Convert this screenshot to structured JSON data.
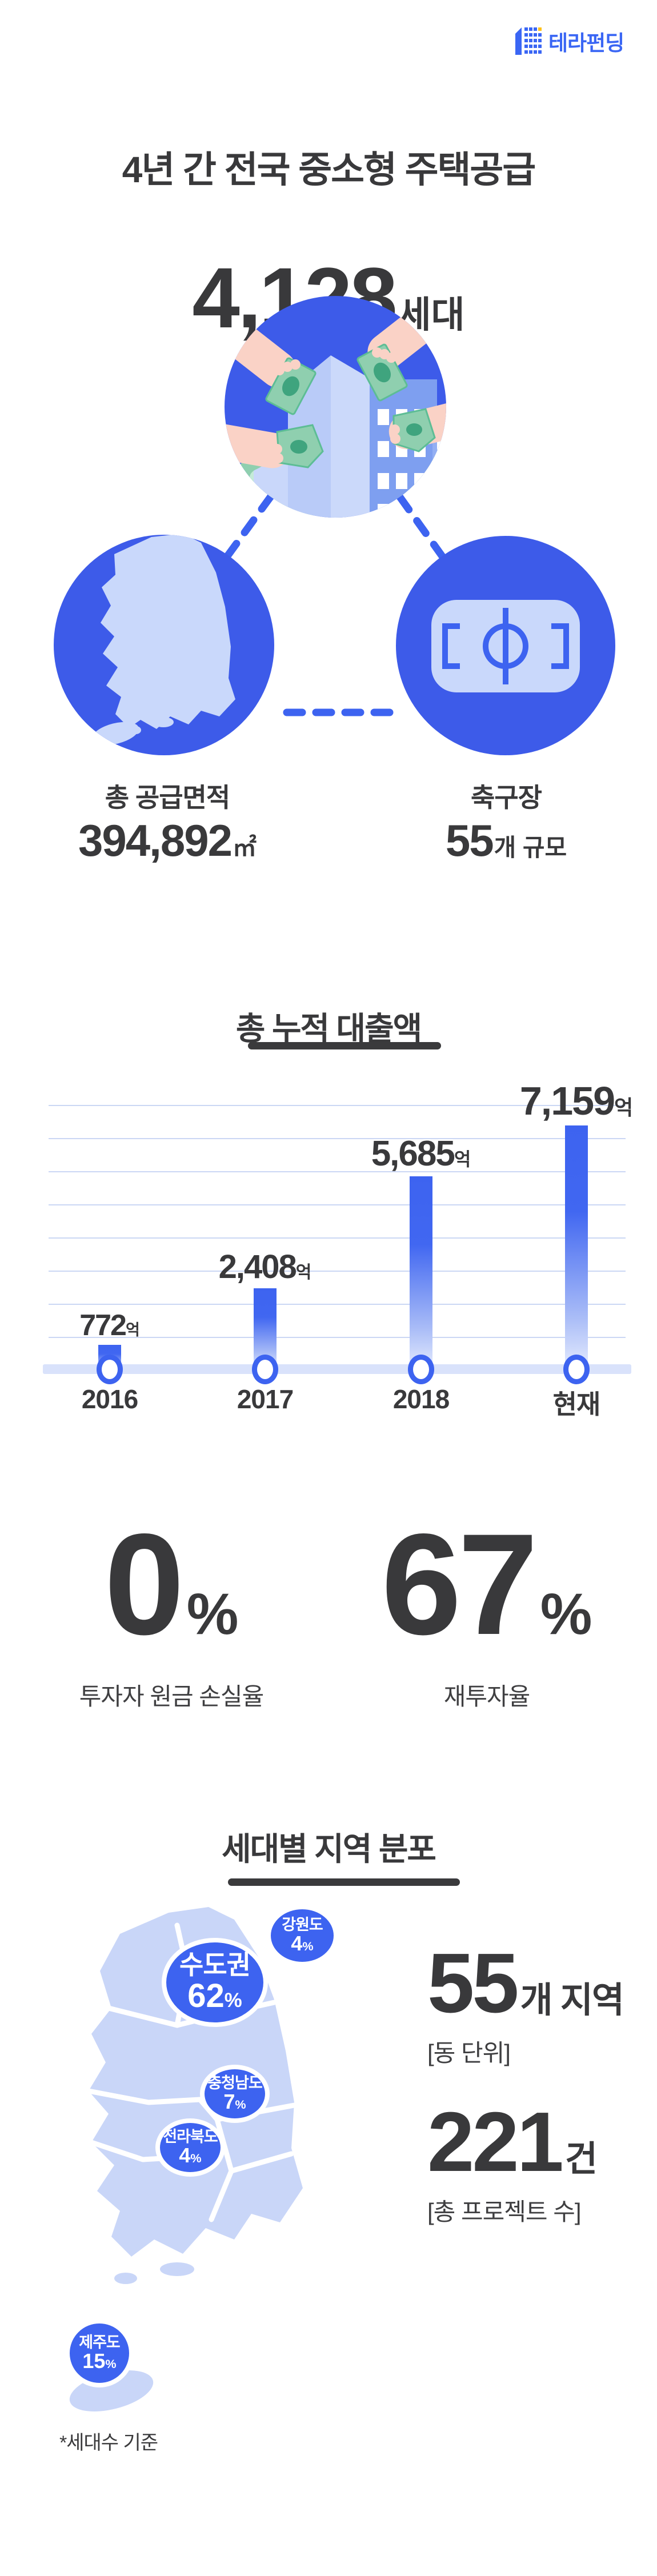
{
  "brand": {
    "name": "테라펀딩"
  },
  "hero": {
    "title": "4년 간 전국 중소형 주택공급",
    "households": {
      "value": "4,128",
      "unit": "세대"
    },
    "area": {
      "label": "총 공급면적",
      "value": "394,892",
      "unit": "㎡"
    },
    "soccer": {
      "label": "축구장",
      "value": "55",
      "unit": "개 규모"
    }
  },
  "loan": {
    "title": "총 누적 대출액"
  },
  "chart_data": {
    "type": "bar",
    "title": "총 누적 대출액",
    "categories": [
      "2016",
      "2017",
      "2018",
      "현재"
    ],
    "values": [
      772,
      2408,
      5685,
      7159
    ],
    "value_labels": [
      "772",
      "2,408",
      "5,685",
      "7,159"
    ],
    "unit": "억",
    "ylim": [
      0,
      7500
    ],
    "grid": true,
    "legend": false,
    "bar_color": "#3D63F0"
  },
  "stats": [
    {
      "value": "0",
      "unit": "%",
      "label": "투자자 원금 손실율"
    },
    {
      "value": "67",
      "unit": "%",
      "label": "재투자율"
    }
  ],
  "region": {
    "title": "세대별 지역 분포",
    "bubbles": [
      {
        "name": "수도권",
        "pct": "62",
        "pct_unit": "%"
      },
      {
        "name": "강원도",
        "pct": "4",
        "pct_unit": "%"
      },
      {
        "name": "충청남도",
        "pct": "7",
        "pct_unit": "%"
      },
      {
        "name": "전라북도",
        "pct": "4",
        "pct_unit": "%"
      },
      {
        "name": "제주도",
        "pct": "15",
        "pct_unit": "%"
      }
    ],
    "areas": {
      "value": "55",
      "unit": "개 지역",
      "caption": "[동 단위]"
    },
    "projects": {
      "value": "221",
      "unit": "건",
      "caption": "[총 프로젝트 수]"
    },
    "footnote": "*세대수 기준"
  },
  "colors": {
    "primary_blue": "#3D63F0",
    "illustration_blue": "#3D5BE9",
    "light_map_blue": "#C9D6F8",
    "gridline": "#CBD7F4",
    "dark_text": "#39393B",
    "logo_yellow": "#FFC117",
    "money_green": "#8FCFAF",
    "skin": "#FAD2C6"
  }
}
